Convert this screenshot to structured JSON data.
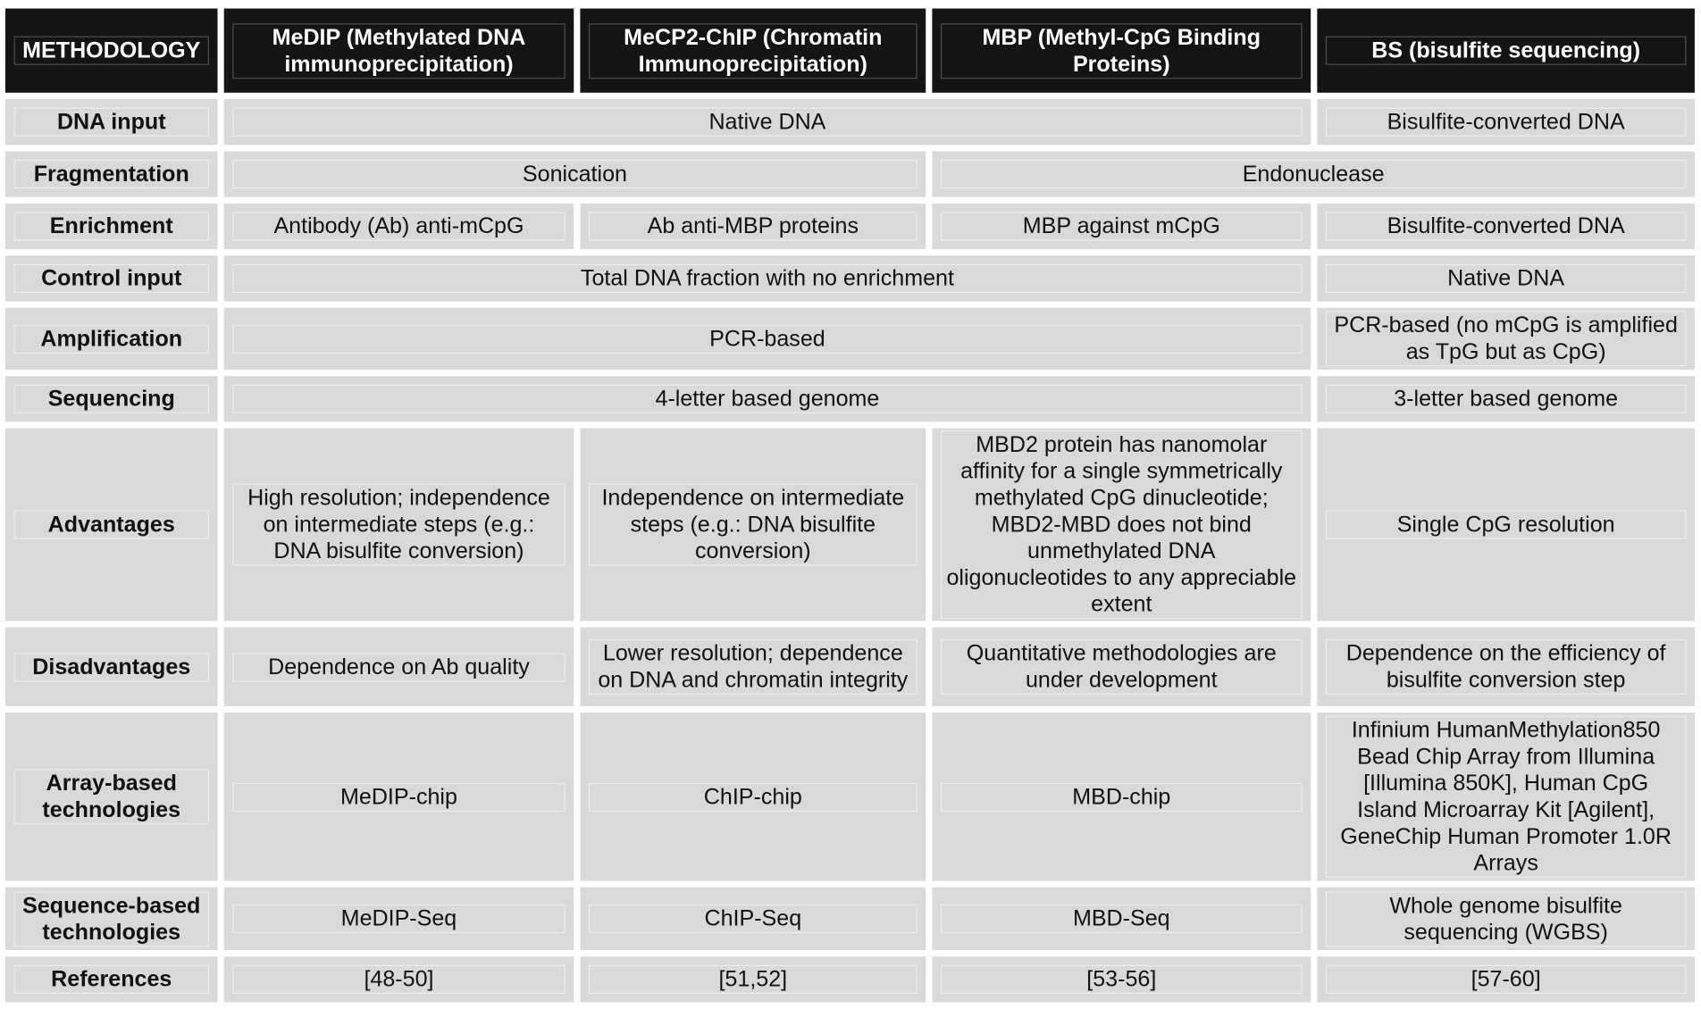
{
  "header": {
    "methodology": "METHODOLOGY",
    "medip": "MeDIP (Methylated DNA immunoprecipitation)",
    "mecp2": "MeCP2-ChIP (Chromatin Immunoprecipitation)",
    "mbp": "MBP (Methyl-CpG Binding Proteins)",
    "bs": "BS (bisulfite sequencing)"
  },
  "rows": {
    "dna_input": {
      "label": "DNA input",
      "shared": "Native DNA",
      "bs": "Bisulfite-converted DNA"
    },
    "fragmentation": {
      "label": "Fragmentation",
      "left": "Sonication",
      "right": "Endonuclease"
    },
    "enrichment": {
      "label": "Enrichment",
      "medip": "Antibody (Ab) anti-mCpG",
      "mecp2": "Ab anti-MBP proteins",
      "mbp": "MBP against mCpG",
      "bs": "Bisulfite-converted DNA"
    },
    "control_input": {
      "label": "Control input",
      "shared": "Total DNA fraction with no enrichment",
      "bs": "Native DNA"
    },
    "amplification": {
      "label": "Amplification",
      "shared": "PCR-based",
      "bs": "PCR-based (no mCpG is amplified as TpG but as CpG)"
    },
    "sequencing": {
      "label": "Sequencing",
      "shared": "4-letter based genome",
      "bs": "3-letter based genome"
    },
    "advantages": {
      "label": "Advantages",
      "medip": "High resolution; independence on intermediate steps (e.g.: DNA bisulfite conversion)",
      "mecp2": "Independence on intermediate steps (e.g.: DNA bisulfite conversion)",
      "mbp": "MBD2 protein has nanomolar affinity for a single symmetrically methylated CpG dinucleotide; MBD2-MBD does not bind unmethylated DNA oligonucleotides to any appreciable extent",
      "bs": "Single CpG resolution"
    },
    "disadvantages": {
      "label": "Disadvantages",
      "medip": "Dependence on Ab quality",
      "mecp2": "Lower resolution; dependence on DNA and chromatin integrity",
      "mbp": "Quantitative methodologies are under development",
      "bs": "Dependence on the efficiency of bisulfite conversion step"
    },
    "array_based": {
      "label": "Array-based technologies",
      "medip": "MeDIP-chip",
      "mecp2": "ChIP-chip",
      "mbp": "MBD-chip",
      "bs": "Infinium HumanMethylation850 Bead Chip Array from Illumina [Illumina 850K], Human CpG Island Microarray Kit [Agilent], GeneChip Human Promoter 1.0R Arrays"
    },
    "sequence_based": {
      "label": "Sequence-based technologies",
      "medip": "MeDIP-Seq",
      "mecp2": "ChIP-Seq",
      "mbp": "MBD-Seq",
      "bs": "Whole genome bisulfite sequencing (WGBS)"
    },
    "references": {
      "label": "References",
      "medip": "[48-50]",
      "mecp2": "[51,52]",
      "mbp": "[53-56]",
      "bs": "[57-60]"
    }
  }
}
